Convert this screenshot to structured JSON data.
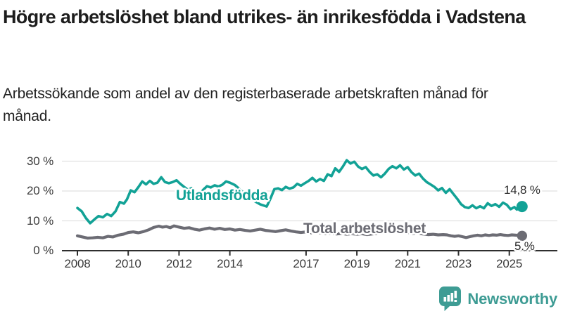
{
  "header": {
    "title": "Högre arbetslöshet bland utrikes- än inrikesfödda i Vadstena",
    "subtitle": "Arbetssökande som andel av den registerbaserade arbetskraften månad för månad."
  },
  "colors": {
    "foreign_born_line": "#12A296",
    "total_line": "#6C6C74",
    "gridline": "#e1e1e1",
    "axis": "#2e2e2e",
    "tick_text": "#3a3a3a",
    "brand": "#3E9C94"
  },
  "chart_data": {
    "type": "line",
    "title": "Högre arbetslöshet bland utrikes- än inrikesfödda i Vadstena",
    "xlabel": "",
    "ylabel": "",
    "grid": "horizontal",
    "x_axis": {
      "ticks": [
        {
          "label": "2008",
          "year": 2008
        },
        {
          "label": "2010",
          "year": 2010
        },
        {
          "label": "2012",
          "year": 2012
        },
        {
          "label": "2014",
          "year": 2014
        },
        {
          "label": "2017",
          "year": 2017
        },
        {
          "label": "2019",
          "year": 2019
        },
        {
          "label": "2021",
          "year": 2021
        },
        {
          "label": "2023",
          "year": 2023
        },
        {
          "label": "2025",
          "year": 2025
        }
      ],
      "range": [
        2007.3,
        2026.9
      ]
    },
    "y_axis": {
      "ticks": [
        {
          "label": "0 %",
          "value": 0
        },
        {
          "label": "10 %",
          "value": 10
        },
        {
          "label": "20 %",
          "value": 20
        },
        {
          "label": "30 %",
          "value": 30
        }
      ],
      "range": [
        0,
        31
      ]
    },
    "series": [
      {
        "name": "Utlandsfödda",
        "color": "#12A296",
        "end_label": "14,8 %",
        "points": [
          [
            2008.0,
            14.3
          ],
          [
            2008.17,
            13.2
          ],
          [
            2008.33,
            11.0
          ],
          [
            2008.5,
            9.2
          ],
          [
            2008.67,
            10.5
          ],
          [
            2008.83,
            11.6
          ],
          [
            2009.0,
            11.2
          ],
          [
            2009.17,
            12.3
          ],
          [
            2009.33,
            11.6
          ],
          [
            2009.5,
            13.2
          ],
          [
            2009.67,
            16.3
          ],
          [
            2009.83,
            15.8
          ],
          [
            2009.95,
            17.2
          ],
          [
            2010.1,
            20.2
          ],
          [
            2010.25,
            19.6
          ],
          [
            2010.4,
            21.3
          ],
          [
            2010.55,
            23.2
          ],
          [
            2010.7,
            22.2
          ],
          [
            2010.85,
            23.4
          ],
          [
            2011.0,
            22.4
          ],
          [
            2011.15,
            22.8
          ],
          [
            2011.3,
            24.6
          ],
          [
            2011.45,
            23.0
          ],
          [
            2011.6,
            22.6
          ],
          [
            2011.75,
            23.0
          ],
          [
            2011.9,
            23.6
          ],
          [
            2012.05,
            22.4
          ],
          [
            2012.2,
            21.4
          ],
          [
            2012.35,
            20.4
          ],
          [
            2012.5,
            21.0
          ],
          [
            2012.65,
            19.4
          ],
          [
            2012.8,
            18.6
          ],
          [
            2012.95,
            20.4
          ],
          [
            2013.1,
            21.6
          ],
          [
            2013.25,
            21.2
          ],
          [
            2013.4,
            21.9
          ],
          [
            2013.55,
            21.5
          ],
          [
            2013.7,
            22.1
          ],
          [
            2013.85,
            23.2
          ],
          [
            2014.0,
            22.8
          ],
          [
            2014.2,
            22.0
          ],
          [
            2014.4,
            20.5
          ],
          [
            2014.6,
            19.0
          ],
          [
            2014.8,
            17.5
          ],
          [
            2015.0,
            16.5
          ],
          [
            2015.2,
            15.5
          ],
          [
            2015.45,
            14.8
          ],
          [
            2015.6,
            17.5
          ],
          [
            2015.75,
            20.6
          ],
          [
            2015.9,
            20.9
          ],
          [
            2016.05,
            20.3
          ],
          [
            2016.2,
            21.4
          ],
          [
            2016.35,
            20.8
          ],
          [
            2016.5,
            21.2
          ],
          [
            2016.65,
            22.4
          ],
          [
            2016.8,
            21.8
          ],
          [
            2016.95,
            22.6
          ],
          [
            2017.1,
            23.4
          ],
          [
            2017.25,
            24.4
          ],
          [
            2017.4,
            23.2
          ],
          [
            2017.55,
            24.0
          ],
          [
            2017.7,
            23.4
          ],
          [
            2017.85,
            25.6
          ],
          [
            2018.0,
            25.0
          ],
          [
            2018.15,
            27.6
          ],
          [
            2018.3,
            26.4
          ],
          [
            2018.45,
            28.2
          ],
          [
            2018.6,
            30.3
          ],
          [
            2018.75,
            29.2
          ],
          [
            2018.9,
            29.8
          ],
          [
            2019.05,
            28.2
          ],
          [
            2019.2,
            27.4
          ],
          [
            2019.35,
            28.0
          ],
          [
            2019.5,
            26.4
          ],
          [
            2019.65,
            25.2
          ],
          [
            2019.8,
            25.6
          ],
          [
            2019.95,
            24.6
          ],
          [
            2020.1,
            25.8
          ],
          [
            2020.25,
            27.4
          ],
          [
            2020.4,
            28.3
          ],
          [
            2020.55,
            27.6
          ],
          [
            2020.7,
            28.6
          ],
          [
            2020.85,
            27.2
          ],
          [
            2021.0,
            28.0
          ],
          [
            2021.15,
            26.3
          ],
          [
            2021.3,
            25.2
          ],
          [
            2021.45,
            25.8
          ],
          [
            2021.6,
            24.2
          ],
          [
            2021.75,
            23.0
          ],
          [
            2021.9,
            22.2
          ],
          [
            2022.05,
            21.4
          ],
          [
            2022.2,
            20.2
          ],
          [
            2022.35,
            21.0
          ],
          [
            2022.5,
            19.4
          ],
          [
            2022.65,
            20.6
          ],
          [
            2022.8,
            19.0
          ],
          [
            2022.95,
            17.4
          ],
          [
            2023.1,
            15.6
          ],
          [
            2023.25,
            14.6
          ],
          [
            2023.4,
            14.3
          ],
          [
            2023.55,
            15.2
          ],
          [
            2023.7,
            14.2
          ],
          [
            2023.85,
            14.9
          ],
          [
            2024.0,
            14.2
          ],
          [
            2024.15,
            15.9
          ],
          [
            2024.3,
            15.0
          ],
          [
            2024.45,
            15.6
          ],
          [
            2024.6,
            14.7
          ],
          [
            2024.75,
            16.1
          ],
          [
            2024.9,
            15.4
          ],
          [
            2025.05,
            13.9
          ],
          [
            2025.2,
            14.6
          ],
          [
            2025.3,
            13.8
          ],
          [
            2025.4,
            14.3
          ],
          [
            2025.5,
            14.8
          ]
        ]
      },
      {
        "name": "Total arbetslöshet",
        "color": "#6C6C74",
        "end_label": "5.%",
        "points": [
          [
            2008.0,
            5.0
          ],
          [
            2008.2,
            4.6
          ],
          [
            2008.4,
            4.2
          ],
          [
            2008.6,
            4.3
          ],
          [
            2008.8,
            4.5
          ],
          [
            2009.0,
            4.3
          ],
          [
            2009.2,
            4.8
          ],
          [
            2009.4,
            4.6
          ],
          [
            2009.6,
            5.2
          ],
          [
            2009.8,
            5.5
          ],
          [
            2010.0,
            6.1
          ],
          [
            2010.2,
            6.3
          ],
          [
            2010.4,
            6.0
          ],
          [
            2010.6,
            6.4
          ],
          [
            2010.8,
            7.0
          ],
          [
            2011.0,
            7.8
          ],
          [
            2011.2,
            8.2
          ],
          [
            2011.35,
            7.9
          ],
          [
            2011.5,
            8.1
          ],
          [
            2011.65,
            7.7
          ],
          [
            2011.8,
            8.3
          ],
          [
            2012.0,
            7.9
          ],
          [
            2012.2,
            7.5
          ],
          [
            2012.4,
            7.7
          ],
          [
            2012.6,
            7.2
          ],
          [
            2012.8,
            6.9
          ],
          [
            2013.0,
            7.3
          ],
          [
            2013.2,
            7.6
          ],
          [
            2013.4,
            7.2
          ],
          [
            2013.6,
            7.5
          ],
          [
            2013.8,
            7.1
          ],
          [
            2014.0,
            7.3
          ],
          [
            2014.2,
            6.9
          ],
          [
            2014.4,
            7.1
          ],
          [
            2014.6,
            6.8
          ],
          [
            2014.8,
            6.6
          ],
          [
            2015.0,
            6.9
          ],
          [
            2015.2,
            7.2
          ],
          [
            2015.4,
            6.8
          ],
          [
            2015.6,
            6.6
          ],
          [
            2015.8,
            6.4
          ],
          [
            2016.0,
            6.7
          ],
          [
            2016.2,
            7.0
          ],
          [
            2016.4,
            6.6
          ],
          [
            2016.6,
            6.3
          ],
          [
            2016.8,
            6.1
          ],
          [
            2017.0,
            6.3
          ],
          [
            2017.2,
            6.0
          ],
          [
            2017.4,
            6.2
          ],
          [
            2017.6,
            5.9
          ],
          [
            2017.8,
            5.7
          ],
          [
            2018.0,
            5.9
          ],
          [
            2018.2,
            5.6
          ],
          [
            2018.4,
            5.8
          ],
          [
            2018.6,
            5.5
          ],
          [
            2018.8,
            5.7
          ],
          [
            2019.0,
            5.5
          ],
          [
            2019.2,
            5.7
          ],
          [
            2019.4,
            5.4
          ],
          [
            2019.6,
            5.6
          ],
          [
            2019.8,
            5.8
          ],
          [
            2020.0,
            6.0
          ],
          [
            2020.2,
            6.4
          ],
          [
            2020.4,
            6.6
          ],
          [
            2020.6,
            6.4
          ],
          [
            2020.8,
            6.2
          ],
          [
            2021.0,
            6.0
          ],
          [
            2021.2,
            5.8
          ],
          [
            2021.4,
            5.9
          ],
          [
            2021.6,
            5.6
          ],
          [
            2021.8,
            5.4
          ],
          [
            2022.0,
            5.5
          ],
          [
            2022.2,
            5.3
          ],
          [
            2022.4,
            5.4
          ],
          [
            2022.55,
            5.3
          ],
          [
            2022.7,
            5.0
          ],
          [
            2022.85,
            4.8
          ],
          [
            2023.0,
            5.0
          ],
          [
            2023.15,
            4.7
          ],
          [
            2023.3,
            4.4
          ],
          [
            2023.45,
            4.7
          ],
          [
            2023.6,
            5.0
          ],
          [
            2023.75,
            5.2
          ],
          [
            2023.9,
            5.0
          ],
          [
            2024.05,
            5.3
          ],
          [
            2024.2,
            5.1
          ],
          [
            2024.35,
            5.3
          ],
          [
            2024.5,
            5.2
          ],
          [
            2024.65,
            5.4
          ],
          [
            2024.8,
            5.2
          ],
          [
            2024.95,
            5.1
          ],
          [
            2025.1,
            5.3
          ],
          [
            2025.25,
            5.2
          ],
          [
            2025.4,
            5.1
          ],
          [
            2025.5,
            5.0
          ]
        ]
      }
    ],
    "legend_position": "inline-labels"
  },
  "labels": {
    "series_teal": "Utlandsfödda",
    "series_gray": "Total arbetslöshet",
    "end_teal": "14,8 %",
    "end_gray": "5.%"
  },
  "footer": {
    "brand": "Newsworthy"
  }
}
